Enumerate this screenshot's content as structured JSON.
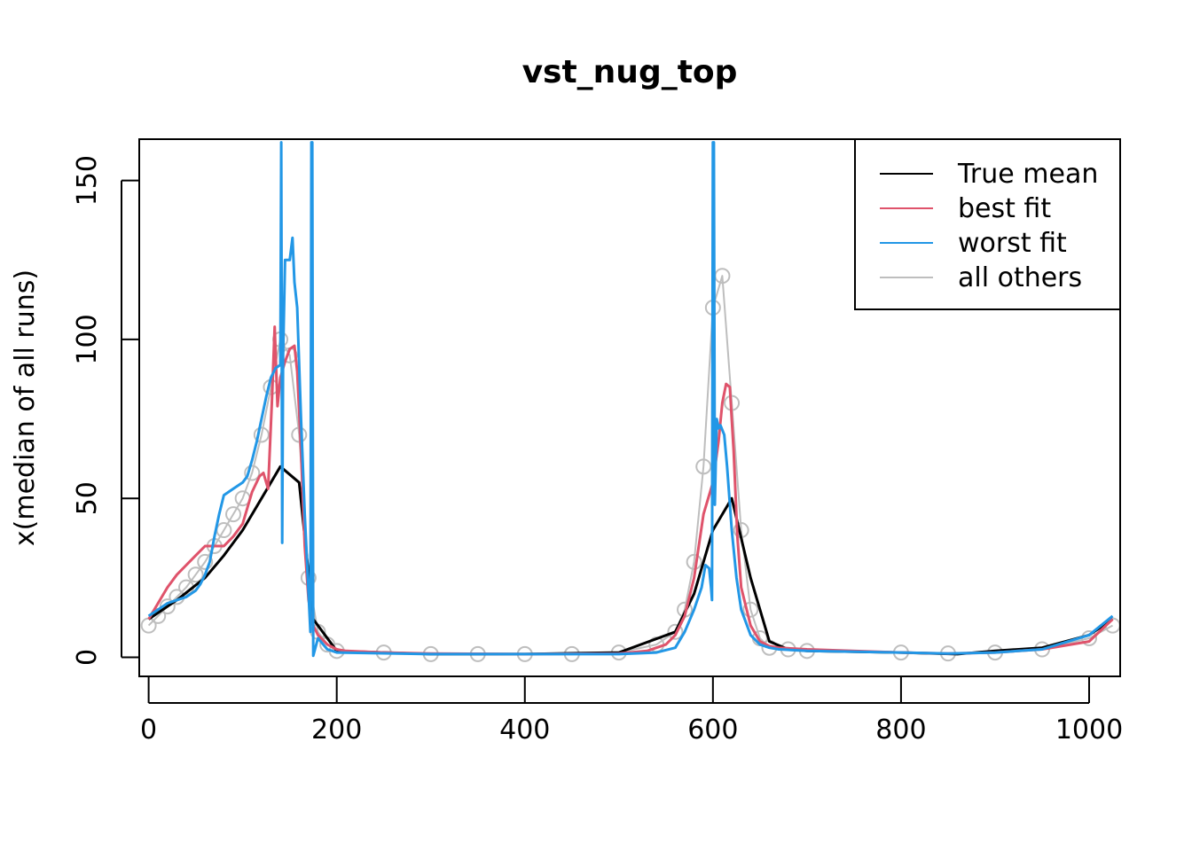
{
  "chart_data": {
    "type": "line",
    "title": "vst_nug_top",
    "xlabel": "",
    "ylabel": "x(median of all runs)",
    "xlim": [
      -10,
      1033
    ],
    "ylim": [
      -6,
      163
    ],
    "xticks": [
      0,
      200,
      400,
      600,
      800,
      1000
    ],
    "yticks": [
      0,
      50,
      100,
      150
    ],
    "legend_position": "top-right",
    "series": [
      {
        "name": "True mean",
        "color": "#000000",
        "x": [
          0,
          30,
          60,
          80,
          100,
          120,
          140,
          160,
          175,
          200,
          300,
          400,
          500,
          560,
          580,
          600,
          620,
          640,
          660,
          680,
          700,
          800,
          860,
          900,
          950,
          1000,
          1025
        ],
        "y": [
          12,
          18,
          25,
          32,
          40,
          50,
          60,
          55,
          12,
          2,
          1,
          1,
          1.5,
          8,
          20,
          40,
          50,
          25,
          5,
          2.5,
          2,
          1.5,
          1,
          2,
          3,
          7,
          12
        ]
      },
      {
        "name": "best fit",
        "color": "#DF536B",
        "x": [
          0,
          10,
          20,
          30,
          40,
          50,
          60,
          70,
          80,
          90,
          100,
          110,
          118,
          122,
          127,
          131,
          134,
          137,
          140,
          145,
          150,
          155,
          158,
          162,
          166,
          170,
          175,
          180,
          190,
          200,
          210,
          250,
          300,
          400,
          500,
          530,
          550,
          560,
          570,
          580,
          590,
          600,
          606,
          610,
          614,
          618,
          622,
          626,
          630,
          640,
          650,
          660,
          670,
          700,
          800,
          850,
          900,
          950,
          1000,
          1025
        ],
        "y": [
          12,
          17,
          22,
          26,
          29,
          32,
          35,
          35,
          35,
          38,
          42,
          52,
          57,
          58,
          53,
          80,
          104,
          79,
          88,
          93,
          97,
          98,
          90,
          65,
          35,
          18,
          10,
          7,
          4,
          2.5,
          2,
          1.5,
          1.2,
          1,
          1.2,
          2,
          4,
          7,
          13,
          25,
          45,
          55,
          68,
          80,
          86,
          85,
          65,
          38,
          22,
          10,
          5,
          3.5,
          3,
          2.5,
          1.5,
          1.2,
          1.5,
          2.5,
          5,
          12
        ]
      },
      {
        "name": "worst fit",
        "color": "#2297E6",
        "x": [
          0,
          10,
          20,
          30,
          40,
          50,
          55,
          60,
          65,
          70,
          75,
          80,
          85,
          90,
          100,
          105,
          110,
          115,
          120,
          125,
          130,
          135,
          140,
          141,
          142,
          143,
          145,
          150,
          153,
          155,
          158,
          162,
          166,
          170,
          172,
          173,
          174,
          175,
          180,
          190,
          200,
          300,
          400,
          500,
          540,
          560,
          570,
          580,
          588,
          592,
          596,
          598,
          599,
          600,
          601,
          602,
          604,
          606,
          608,
          612,
          615,
          620,
          625,
          630,
          640,
          650,
          660,
          670,
          700,
          800,
          850,
          900,
          950,
          1000,
          1025
        ],
        "y": [
          13,
          15,
          17,
          18,
          19,
          21,
          23,
          26,
          30,
          38,
          45,
          51,
          52,
          53,
          55,
          57,
          62,
          68,
          75,
          82,
          88,
          91,
          92,
          162,
          36,
          95,
          125,
          125,
          132,
          118,
          110,
          75,
          45,
          20,
          8,
          162,
          162,
          0.5,
          6,
          2.5,
          1.5,
          1,
          1,
          1,
          1.5,
          3,
          8,
          15,
          22,
          29,
          28,
          22,
          18,
          162,
          162,
          48,
          75,
          72,
          73,
          70,
          60,
          40,
          25,
          15,
          7,
          4,
          3,
          2.5,
          2,
          1.5,
          1.2,
          1.5,
          2.5,
          7,
          13
        ]
      },
      {
        "name": "all others",
        "color": "#BEBEBE",
        "x": [
          0,
          10,
          20,
          30,
          40,
          50,
          60,
          70,
          80,
          90,
          100,
          110,
          120,
          130,
          140,
          150,
          160,
          170,
          180,
          190,
          200,
          250,
          300,
          350,
          400,
          450,
          500,
          540,
          560,
          570,
          580,
          590,
          600,
          610,
          620,
          630,
          640,
          650,
          660,
          680,
          700,
          800,
          850,
          900,
          950,
          1000,
          1025
        ],
        "y": [
          10,
          13,
          16,
          19,
          22,
          26,
          30,
          35,
          40,
          45,
          50,
          58,
          70,
          85,
          100,
          95,
          70,
          25,
          8,
          4,
          2,
          1.5,
          1,
          1,
          1,
          1,
          1.5,
          4,
          8,
          15,
          30,
          60,
          110,
          120,
          80,
          40,
          15,
          6,
          3,
          2.5,
          2,
          1.5,
          1.2,
          1.5,
          2.5,
          6,
          10
        ]
      }
    ]
  }
}
